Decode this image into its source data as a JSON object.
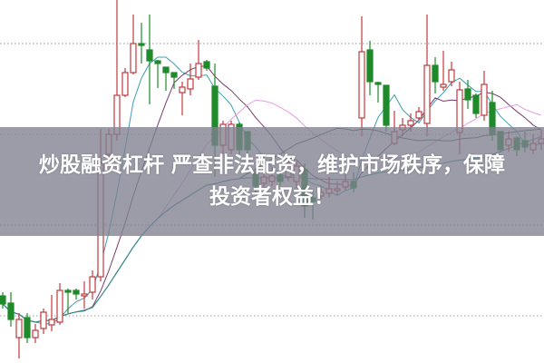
{
  "banner": {
    "line1": "炒股融资杠杆 严查非法配资，维护市场秩序，保障",
    "line2": "投资者权益！"
  },
  "chart_data": {
    "type": "candlestick",
    "title": "",
    "xlabel": "",
    "ylabel": "",
    "ylim": [
      0,
      40
    ],
    "grid": "horizontal dotted",
    "price_unit": "relative",
    "colors": {
      "up": "#c0393b",
      "down": "#1f8a2a",
      "ma5": "#3a9fb0",
      "ma10": "#7a3c6e",
      "ma20": "#e49be4",
      "ma30": "#3d5e40",
      "ma60": "#2b8f8f",
      "grid": "#999999"
    },
    "moving_averages": [
      5,
      10,
      20,
      30,
      60
    ],
    "candles_ohlc": [
      [
        7.4,
        7.8,
        6.0,
        6.5
      ],
      [
        6.6,
        7.8,
        4.0,
        4.8
      ],
      [
        2.8,
        5.5,
        0.5,
        4.8
      ],
      [
        5.0,
        5.5,
        2.2,
        2.8
      ],
      [
        2.8,
        4.3,
        2.2,
        3.6
      ],
      [
        3.8,
        6.0,
        3.2,
        5.6
      ],
      [
        4.2,
        7.5,
        3.5,
        4.8
      ],
      [
        4.5,
        8.8,
        4.2,
        8.0
      ],
      [
        8.0,
        8.2,
        5.5,
        7.8
      ],
      [
        8.0,
        8.2,
        7.0,
        7.6
      ],
      [
        7.4,
        9.0,
        6.0,
        7.6
      ],
      [
        7.8,
        10.2,
        7.0,
        9.5
      ],
      [
        9.5,
        25.8,
        9.0,
        22.0
      ],
      [
        23.0,
        25.8,
        22.5,
        25.2
      ],
      [
        25.2,
        40.0,
        24.5,
        29.5
      ],
      [
        29.5,
        32.5,
        29.3,
        32.0
      ],
      [
        32.0,
        38.4,
        31.8,
        35.2
      ],
      [
        35.2,
        37.5,
        33.0,
        35.0
      ],
      [
        34.5,
        38.4,
        28.5,
        33.3
      ],
      [
        33.3,
        33.4,
        30.3,
        33.0
      ],
      [
        32.6,
        32.6,
        30.0,
        32.0
      ],
      [
        32.0,
        32.0,
        30.2,
        31.5
      ],
      [
        29.8,
        31.0,
        27.3,
        30.4
      ],
      [
        30.2,
        33.0,
        29.5,
        31.3
      ],
      [
        31.5,
        35.6,
        31.2,
        33.0
      ],
      [
        33.2,
        33.4,
        32.2,
        32.5
      ],
      [
        30.5,
        33.0,
        20.5,
        24.0
      ],
      [
        24.0,
        26.7,
        23.0,
        26.3
      ],
      [
        23.5,
        26.7,
        23.0,
        26.3
      ],
      [
        26.3,
        26.5,
        23.0,
        23.5
      ],
      [
        25.5,
        25.5,
        23.0,
        23.5
      ],
      [
        21.0,
        21.5,
        18.5,
        19.5
      ],
      [
        19.8,
        21.0,
        19.3,
        20.5
      ],
      [
        20.0,
        21.5,
        19.5,
        20.6
      ],
      [
        20.7,
        21.2,
        19.5,
        20.0
      ],
      [
        20.5,
        22.5,
        20.0,
        22.0
      ],
      [
        20.0,
        22.2,
        19.3,
        21.7
      ],
      [
        21.3,
        22.0,
        16.0,
        17.3
      ],
      [
        18.2,
        19.0,
        15.8,
        17.8
      ],
      [
        18.4,
        19.5,
        18.0,
        18.8
      ],
      [
        18.7,
        20.5,
        18.2,
        19.2
      ],
      [
        19.0,
        20.0,
        18.5,
        19.2
      ],
      [
        19.4,
        21.0,
        19.0,
        20.0
      ],
      [
        20.0,
        21.0,
        18.8,
        19.3
      ],
      [
        27.0,
        38.2,
        25.0,
        34.3
      ],
      [
        34.5,
        35.5,
        29.5,
        31.0
      ],
      [
        30.9,
        31.0,
        28.7,
        30.7
      ],
      [
        30.6,
        30.6,
        25.5,
        26.2
      ],
      [
        24.2,
        27.8,
        24.0,
        25.5
      ],
      [
        25.7,
        27.0,
        25.0,
        26.2
      ],
      [
        26.2,
        27.5,
        25.5,
        26.7
      ],
      [
        27.0,
        28.2,
        26.8,
        27.7
      ],
      [
        26.4,
        38.4,
        25.0,
        32.8
      ],
      [
        32.8,
        33.7,
        29.7,
        31.0
      ],
      [
        30.4,
        34.4,
        30.0,
        30.7
      ],
      [
        31.0,
        33.2,
        30.5,
        32.3
      ],
      [
        25.4,
        31.0,
        23.0,
        30.1
      ],
      [
        30.2,
        31.2,
        28.0,
        29.0
      ],
      [
        29.5,
        29.7,
        27.0,
        27.5
      ],
      [
        27.3,
        32.2,
        26.7,
        30.7
      ],
      [
        28.7,
        30.0,
        24.5,
        25.2
      ],
      [
        25.5,
        25.5,
        23.2,
        23.5
      ],
      [
        24.0,
        25.5,
        23.3,
        24.7
      ],
      [
        24.8,
        25.0,
        22.8,
        23.5
      ],
      [
        24.5,
        25.5,
        23.2,
        23.8
      ],
      [
        23.5,
        25.2,
        23.0,
        24.2
      ],
      [
        24.2,
        25.7,
        23.5,
        24.7
      ]
    ]
  }
}
